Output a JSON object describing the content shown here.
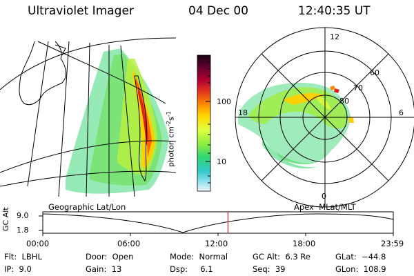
{
  "header": {
    "instrument": "Ultraviolet Imager",
    "date": "04 Dec 00",
    "time": "12:40:35 UT"
  },
  "colorbar": {
    "unit_label": "photon cm",
    "unit_exp1": "-2",
    "unit_s": "s",
    "unit_exp2": "-1",
    "tick_high": "100",
    "tick_low": "10",
    "colors": [
      "#1a0010",
      "#5a0030",
      "#a00030",
      "#e03020",
      "#ff8000",
      "#ffd000",
      "#e8ff40",
      "#a0f040",
      "#40e060",
      "#20c8c0",
      "#80e0f0",
      "#e0f0f8"
    ]
  },
  "geo_panel": {
    "label": "Geographic Lat/Lon"
  },
  "polar_panel": {
    "label": "Apex  MLat/MLT",
    "mlt_labels": {
      "top": "12",
      "left": "18",
      "right": "6",
      "bottom": "0"
    },
    "lat_labels": [
      "60",
      "70",
      "80"
    ]
  },
  "altitude_plot": {
    "ylabel": "GC Alt",
    "ytick_top": "9.0",
    "ytick_bottom": "1.8",
    "xticks": [
      "00:00",
      "06:00",
      "12:00",
      "18:00",
      "23:59"
    ],
    "current_time_hours": 12.68,
    "apogee_re": 9.0,
    "perigee_re": 1.8
  },
  "footer": {
    "filter": "Flt:  LBHL",
    "ip": "IP:  9.0",
    "door": "Door:  Open",
    "gain": "Gain:  13",
    "mode": "Mode:  Normal",
    "dsp": "Dsp:     6.1",
    "gc_alt": "GC Alt:  6.3 Re",
    "seq": "Seq:  39",
    "glat": "GLat:  −44.8",
    "glon": "GLon:  108.9"
  }
}
